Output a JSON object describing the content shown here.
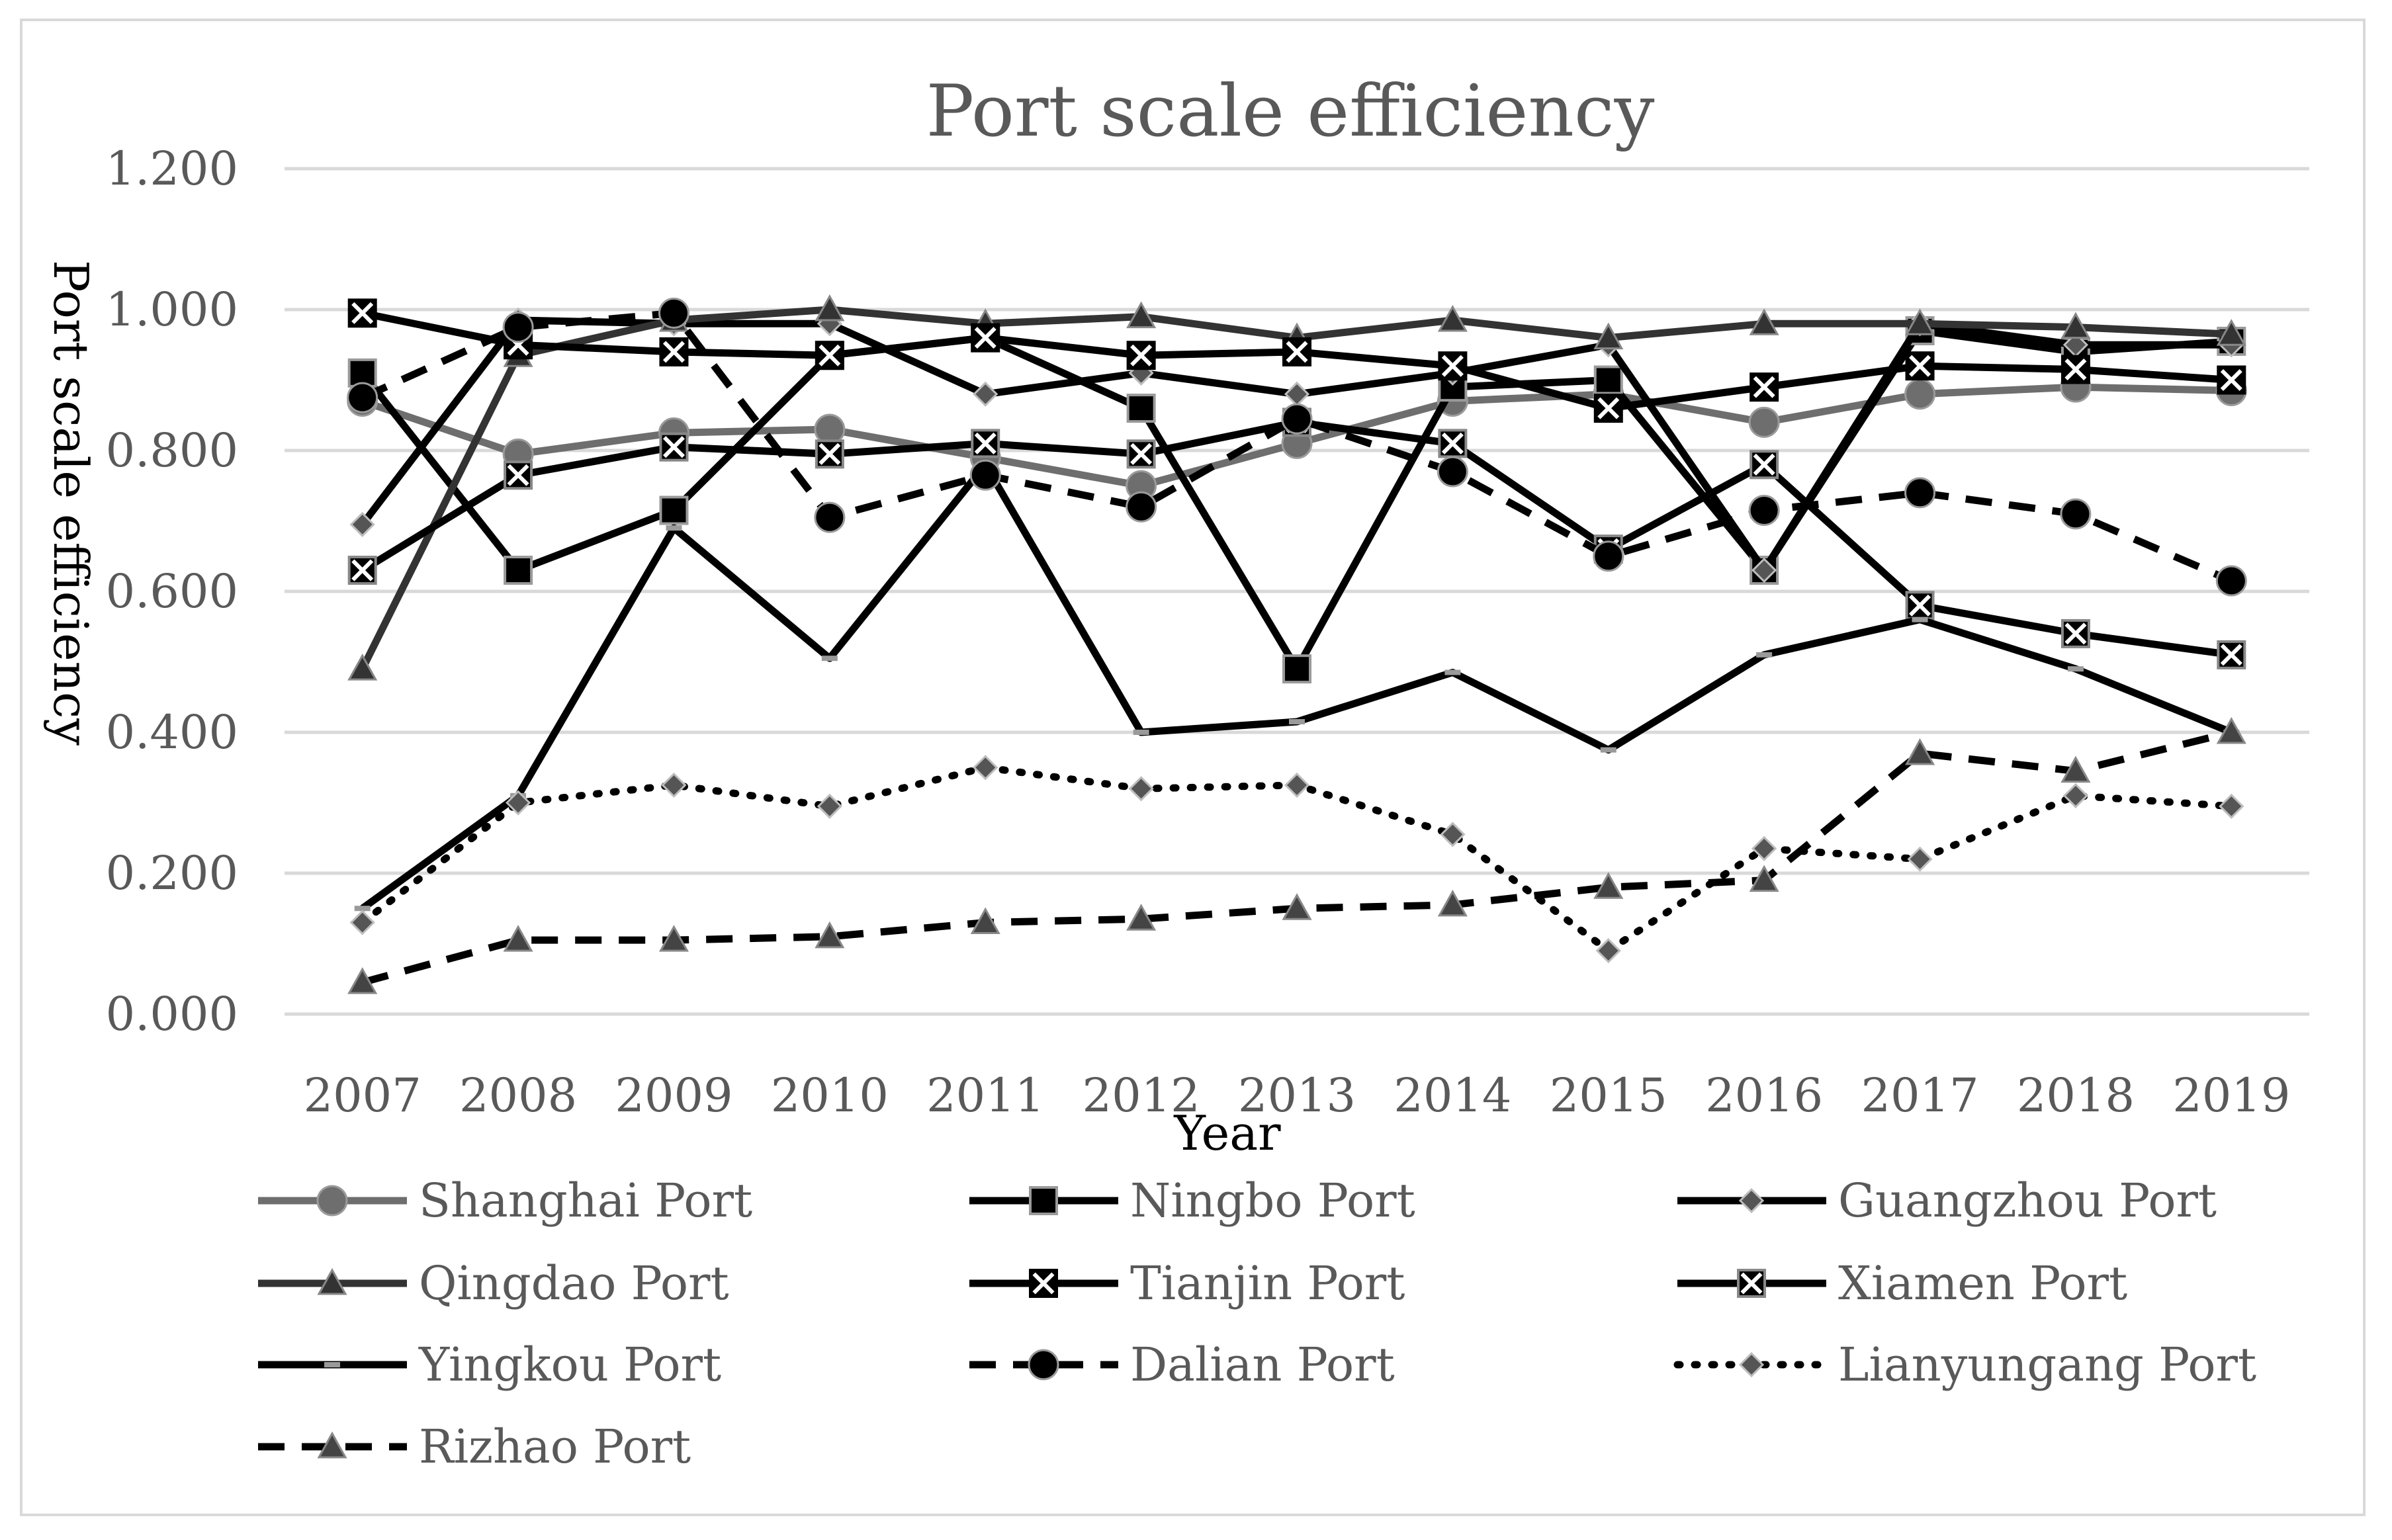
{
  "chart_data": {
    "type": "line",
    "title": "Port scale efficiency",
    "xlabel": "Year",
    "ylabel": "Port scale efficiency",
    "categories": [
      "2007",
      "2008",
      "2009",
      "2010",
      "2011",
      "2012",
      "2013",
      "2014",
      "2015",
      "2016",
      "2017",
      "2018",
      "2019"
    ],
    "ylim": [
      0,
      1.2
    ],
    "yticks": [
      "0.000",
      "0.200",
      "0.400",
      "0.600",
      "0.800",
      "1.000",
      "1.200"
    ],
    "grid": true,
    "legend_position": "bottom",
    "series": [
      {
        "name": "Shanghai Port",
        "color": "#6e6e6e",
        "dash": "solid",
        "marker": "circle",
        "values": [
          0.87,
          0.795,
          0.825,
          0.83,
          0.79,
          0.75,
          0.81,
          0.87,
          0.88,
          0.84,
          0.88,
          0.89,
          0.885
        ]
      },
      {
        "name": "Ningbo Port",
        "color": "#000000",
        "dash": "solid",
        "marker": "square",
        "values": [
          0.91,
          0.63,
          0.715,
          0.935,
          0.96,
          0.86,
          0.49,
          0.89,
          0.9,
          0.63,
          0.97,
          0.94,
          0.955
        ]
      },
      {
        "name": "Guangzhou Port",
        "color": "#000000",
        "dash": "solid",
        "marker": "diamond",
        "values": [
          0.695,
          0.985,
          0.98,
          0.98,
          0.88,
          0.91,
          0.88,
          0.91,
          0.95,
          0.63,
          0.98,
          0.95,
          0.95
        ]
      },
      {
        "name": "Qingdao Port",
        "color": "#333333",
        "dash": "solid",
        "marker": "triangle",
        "values": [
          0.49,
          0.935,
          0.985,
          1.0,
          0.98,
          0.99,
          0.96,
          0.985,
          0.96,
          0.98,
          0.98,
          0.975,
          0.965
        ]
      },
      {
        "name": "Tianjin Port",
        "color": "#000000",
        "dash": "solid",
        "marker": "x",
        "values": [
          0.995,
          0.95,
          0.94,
          0.935,
          0.96,
          0.935,
          0.94,
          0.92,
          0.86,
          0.89,
          0.92,
          0.915,
          0.9
        ]
      },
      {
        "name": "Xiamen Port",
        "color": "#000000",
        "dash": "solid",
        "marker": "xsquare",
        "values": [
          0.63,
          0.765,
          0.805,
          0.795,
          0.81,
          0.795,
          0.84,
          0.81,
          0.66,
          0.78,
          0.58,
          0.54,
          0.51
        ]
      },
      {
        "name": "Yingkou Port",
        "color": "#000000",
        "dash": "solid",
        "marker": "dash",
        "values": [
          0.15,
          0.31,
          0.69,
          0.505,
          0.78,
          0.4,
          0.415,
          0.485,
          0.375,
          0.51,
          0.56,
          0.49,
          0.4
        ]
      },
      {
        "name": "Dalian Port",
        "color": "#000000",
        "dash": "dashed",
        "marker": "circle",
        "values": [
          0.875,
          0.975,
          0.995,
          0.705,
          0.765,
          0.72,
          0.845,
          0.77,
          0.65,
          0.715,
          0.74,
          0.71,
          0.615
        ]
      },
      {
        "name": "Lianyungang Port",
        "color": "#000000",
        "dash": "dotted",
        "marker": "diamond",
        "values": [
          0.13,
          0.3,
          0.325,
          0.295,
          0.35,
          0.32,
          0.325,
          0.255,
          0.09,
          0.235,
          0.22,
          0.31,
          0.295
        ]
      },
      {
        "name": "Rizhao Port",
        "color": "#000000",
        "dash": "dashed",
        "marker": "triangle",
        "values": [
          0.045,
          0.105,
          0.105,
          0.11,
          0.13,
          0.135,
          0.15,
          0.155,
          0.18,
          0.19,
          0.37,
          0.345,
          0.4
        ]
      }
    ]
  }
}
